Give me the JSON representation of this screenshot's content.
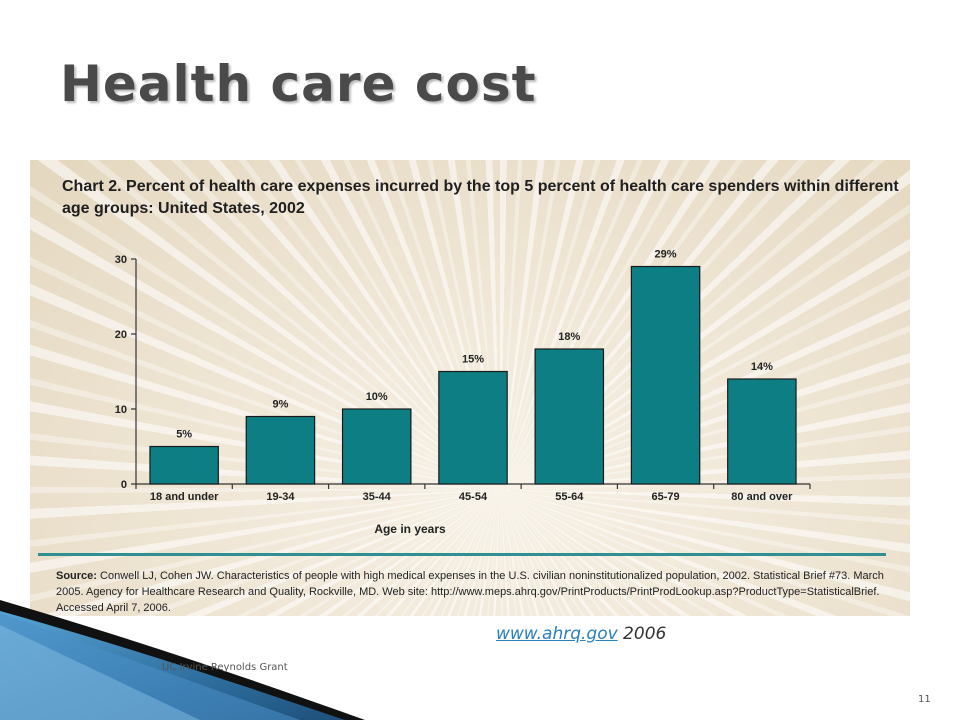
{
  "slide": {
    "title": "Health care cost",
    "link_text": "www.ahrq.gov",
    "link_year": " 2006",
    "credit": "UC Irvine Reynolds Grant",
    "page_number": "11"
  },
  "colors": {
    "bar": "#0e7e85",
    "rule": "#2f8f93",
    "link": "#2a7fbf"
  },
  "source": {
    "label": "Source:",
    "text": " Conwell LJ, Cohen JW. Characteristics of people with high medical expenses in the U.S. civilian noninstitutionalized population, 2002. Statistical Brief #73. March 2005. Agency for Healthcare Research and Quality, Rockville, MD. Web site: http://www.meps.ahrq.gov/PrintProducts/PrintProdLookup.asp?ProductType=StatisticalBrief. Accessed April 7, 2006."
  },
  "chart_data": {
    "type": "bar",
    "title": "Chart 2. Percent of health care expenses incurred by the top 5 percent of health care spenders within different age groups: United States, 2002",
    "xlabel": "Age in years",
    "ylabel": "",
    "categories": [
      "18 and under",
      "19-34",
      "35-44",
      "45-54",
      "55-64",
      "65-79",
      "80 and over"
    ],
    "values": [
      5,
      9,
      10,
      15,
      18,
      29,
      14
    ],
    "data_labels": [
      "5%",
      "9%",
      "10%",
      "15%",
      "18%",
      "29%",
      "14%"
    ],
    "ylim": [
      0,
      30
    ],
    "yticks": [
      0,
      10,
      20,
      30
    ],
    "grid": false,
    "legend": "none"
  }
}
